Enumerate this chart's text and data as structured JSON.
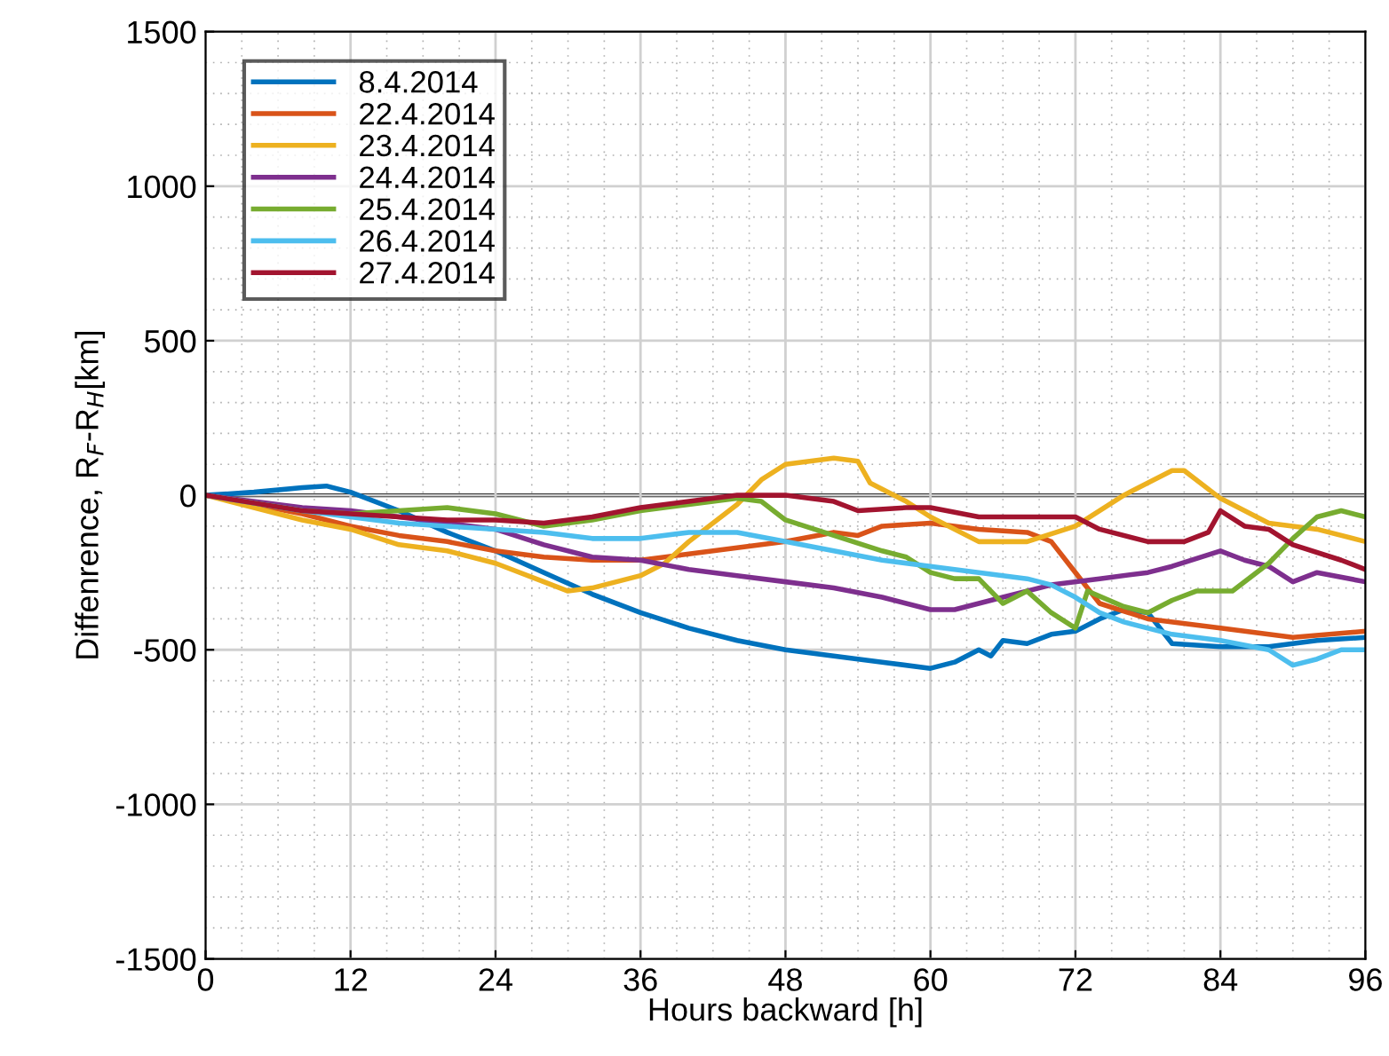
{
  "chart_data": {
    "type": "line",
    "xlabel": "Hours backward [h]",
    "ylabel": "Diffenrence, R$_{F}$-R$_{H}$[km]",
    "xlim": [
      0,
      96
    ],
    "xticks": [
      0,
      12,
      24,
      36,
      48,
      60,
      72,
      84,
      96
    ],
    "ylim": [
      -1500,
      1500
    ],
    "yticks": [
      -1500,
      -1000,
      -500,
      0,
      500,
      1000,
      1500
    ],
    "grid": true,
    "legend": "top left",
    "line_style": "solid",
    "marker": "none",
    "ref_lines": [
      {
        "axis": "y",
        "value": 0,
        "color": "#000000"
      }
    ],
    "series": [
      {
        "name": "8.4.2014",
        "color": "#0072bd",
        "x": [
          0,
          4,
          8,
          10,
          12,
          16,
          20,
          24,
          28,
          32,
          36,
          40,
          44,
          48,
          52,
          56,
          60,
          62,
          64,
          65,
          66,
          68,
          70,
          72,
          74,
          76,
          78,
          80,
          84,
          88,
          92,
          96
        ],
        "values": [
          0,
          10,
          25,
          30,
          10,
          -50,
          -120,
          -180,
          -250,
          -320,
          -380,
          -430,
          -470,
          -500,
          -520,
          -540,
          -560,
          -540,
          -500,
          -520,
          -470,
          -480,
          -450,
          -440,
          -400,
          -370,
          -380,
          -480,
          -490,
          -490,
          -470,
          -460
        ]
      },
      {
        "name": "22.4.2014",
        "color": "#d95319",
        "x": [
          0,
          8,
          12,
          16,
          20,
          24,
          28,
          32,
          36,
          40,
          44,
          48,
          52,
          54,
          56,
          60,
          64,
          68,
          70,
          72,
          74,
          78,
          84,
          90,
          96
        ],
        "values": [
          0,
          -60,
          -100,
          -130,
          -150,
          -180,
          -200,
          -210,
          -210,
          -190,
          -170,
          -150,
          -120,
          -130,
          -100,
          -90,
          -110,
          -120,
          -150,
          -250,
          -350,
          -400,
          -430,
          -460,
          -440
        ]
      },
      {
        "name": "23.4.2014",
        "color": "#edb120",
        "x": [
          0,
          8,
          12,
          16,
          20,
          24,
          28,
          30,
          32,
          36,
          38,
          40,
          44,
          46,
          48,
          52,
          54,
          55,
          58,
          60,
          64,
          68,
          72,
          76,
          80,
          81,
          84,
          88,
          92,
          96
        ],
        "values": [
          0,
          -80,
          -110,
          -160,
          -180,
          -220,
          -280,
          -310,
          -300,
          -260,
          -220,
          -150,
          -30,
          50,
          100,
          120,
          110,
          40,
          -20,
          -70,
          -150,
          -150,
          -100,
          0,
          80,
          80,
          -10,
          -90,
          -110,
          -150
        ]
      },
      {
        "name": "24.4.2014",
        "color": "#7e2f8e",
        "x": [
          0,
          8,
          12,
          16,
          20,
          24,
          28,
          32,
          36,
          40,
          44,
          48,
          52,
          56,
          60,
          62,
          66,
          70,
          74,
          78,
          80,
          84,
          86,
          88,
          90,
          92,
          96
        ],
        "values": [
          0,
          -40,
          -50,
          -70,
          -90,
          -110,
          -160,
          -200,
          -210,
          -240,
          -260,
          -280,
          -300,
          -330,
          -370,
          -370,
          -330,
          -290,
          -270,
          -250,
          -230,
          -180,
          -210,
          -230,
          -280,
          -250,
          -280
        ]
      },
      {
        "name": "25.4.2014",
        "color": "#77ac30",
        "x": [
          0,
          8,
          12,
          16,
          20,
          24,
          28,
          32,
          36,
          40,
          44,
          46,
          48,
          52,
          56,
          58,
          60,
          62,
          64,
          66,
          68,
          70,
          72,
          73,
          76,
          78,
          80,
          82,
          85,
          88,
          90,
          92,
          94,
          96
        ],
        "values": [
          0,
          -50,
          -60,
          -50,
          -40,
          -60,
          -100,
          -80,
          -50,
          -30,
          -10,
          -20,
          -80,
          -130,
          -180,
          -200,
          -250,
          -270,
          -270,
          -350,
          -310,
          -380,
          -430,
          -310,
          -360,
          -380,
          -340,
          -310,
          -310,
          -220,
          -140,
          -70,
          -50,
          -70
        ]
      },
      {
        "name": "26.4.2014",
        "color": "#4dbeee",
        "x": [
          0,
          8,
          12,
          16,
          20,
          24,
          28,
          32,
          36,
          40,
          44,
          48,
          52,
          56,
          60,
          64,
          68,
          70,
          72,
          74,
          76,
          80,
          84,
          88,
          90,
          92,
          94,
          96
        ],
        "values": [
          0,
          -50,
          -70,
          -90,
          -100,
          -110,
          -120,
          -140,
          -140,
          -120,
          -120,
          -150,
          -180,
          -210,
          -230,
          -250,
          -270,
          -290,
          -330,
          -380,
          -410,
          -450,
          -470,
          -500,
          -550,
          -530,
          -500,
          -500
        ]
      },
      {
        "name": "27.4.2014",
        "color": "#a2142f",
        "x": [
          0,
          8,
          12,
          16,
          20,
          24,
          28,
          32,
          36,
          40,
          44,
          48,
          52,
          54,
          58,
          60,
          64,
          68,
          72,
          74,
          78,
          81,
          83,
          84,
          86,
          88,
          90,
          94,
          96
        ],
        "values": [
          0,
          -50,
          -60,
          -70,
          -80,
          -80,
          -90,
          -70,
          -40,
          -20,
          0,
          0,
          -20,
          -50,
          -40,
          -40,
          -70,
          -70,
          -70,
          -110,
          -150,
          -150,
          -120,
          -50,
          -100,
          -110,
          -160,
          -210,
          -240
        ]
      }
    ]
  }
}
